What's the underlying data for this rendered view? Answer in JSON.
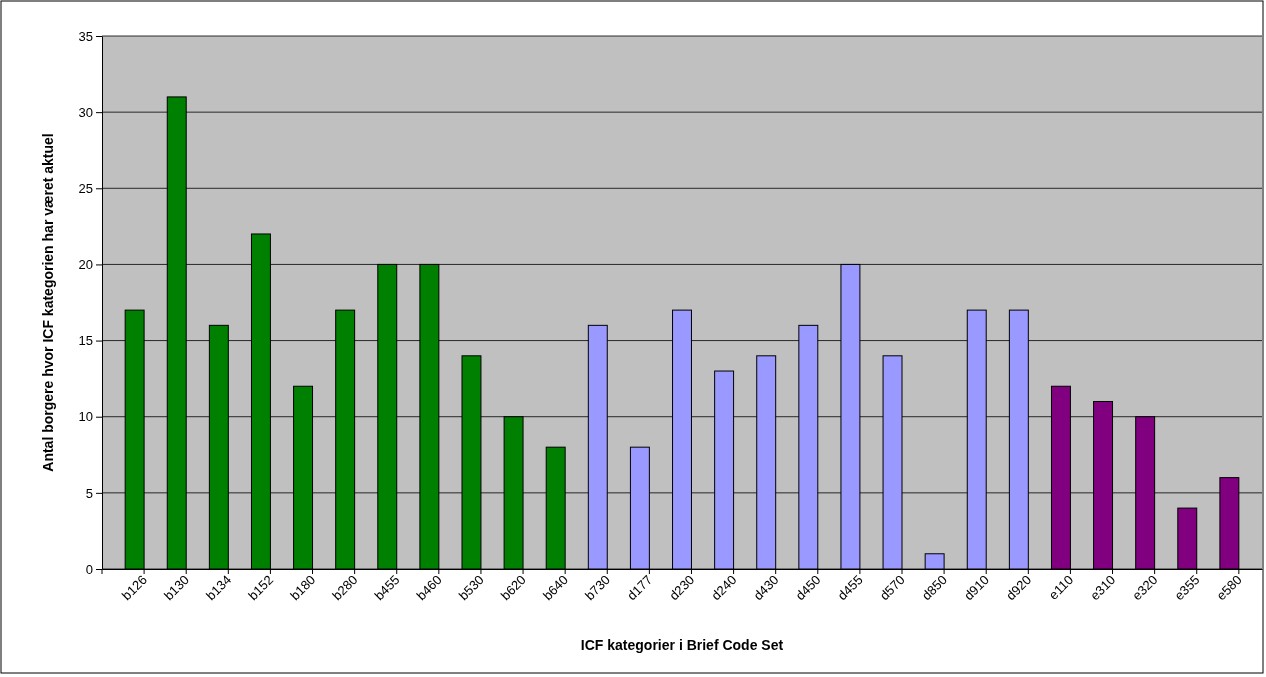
{
  "chart_data": {
    "type": "bar",
    "xlabel": "ICF kategorier i Brief Code Set",
    "ylabel": "Antal borgere hvor ICF kategorien har været aktuel",
    "categories": [
      "b126",
      "b130",
      "b134",
      "b152",
      "b180",
      "b280",
      "b455",
      "b460",
      "b530",
      "b620",
      "b640",
      "b730",
      "d177",
      "d230",
      "d240",
      "d430",
      "d450",
      "d455",
      "d570",
      "d850",
      "d910",
      "d920",
      "e110",
      "e310",
      "e320",
      "e355",
      "e580"
    ],
    "values": [
      17,
      31,
      16,
      22,
      12,
      17,
      20,
      20,
      14,
      10,
      8,
      16,
      8,
      17,
      13,
      14,
      16,
      20,
      14,
      1,
      17,
      17,
      12,
      11,
      10,
      4,
      6
    ],
    "colors": [
      "#008000",
      "#008000",
      "#008000",
      "#008000",
      "#008000",
      "#008000",
      "#008000",
      "#008000",
      "#008000",
      "#008000",
      "#008000",
      "#9999ff",
      "#9999ff",
      "#9999ff",
      "#9999ff",
      "#9999ff",
      "#9999ff",
      "#9999ff",
      "#9999ff",
      "#9999ff",
      "#9999ff",
      "#9999ff",
      "#800080",
      "#800080",
      "#800080",
      "#800080",
      "#800080"
    ],
    "ylim": [
      0,
      35
    ],
    "yticks": [
      0,
      5,
      10,
      15,
      20,
      25,
      30,
      35
    ],
    "grid": "y"
  }
}
